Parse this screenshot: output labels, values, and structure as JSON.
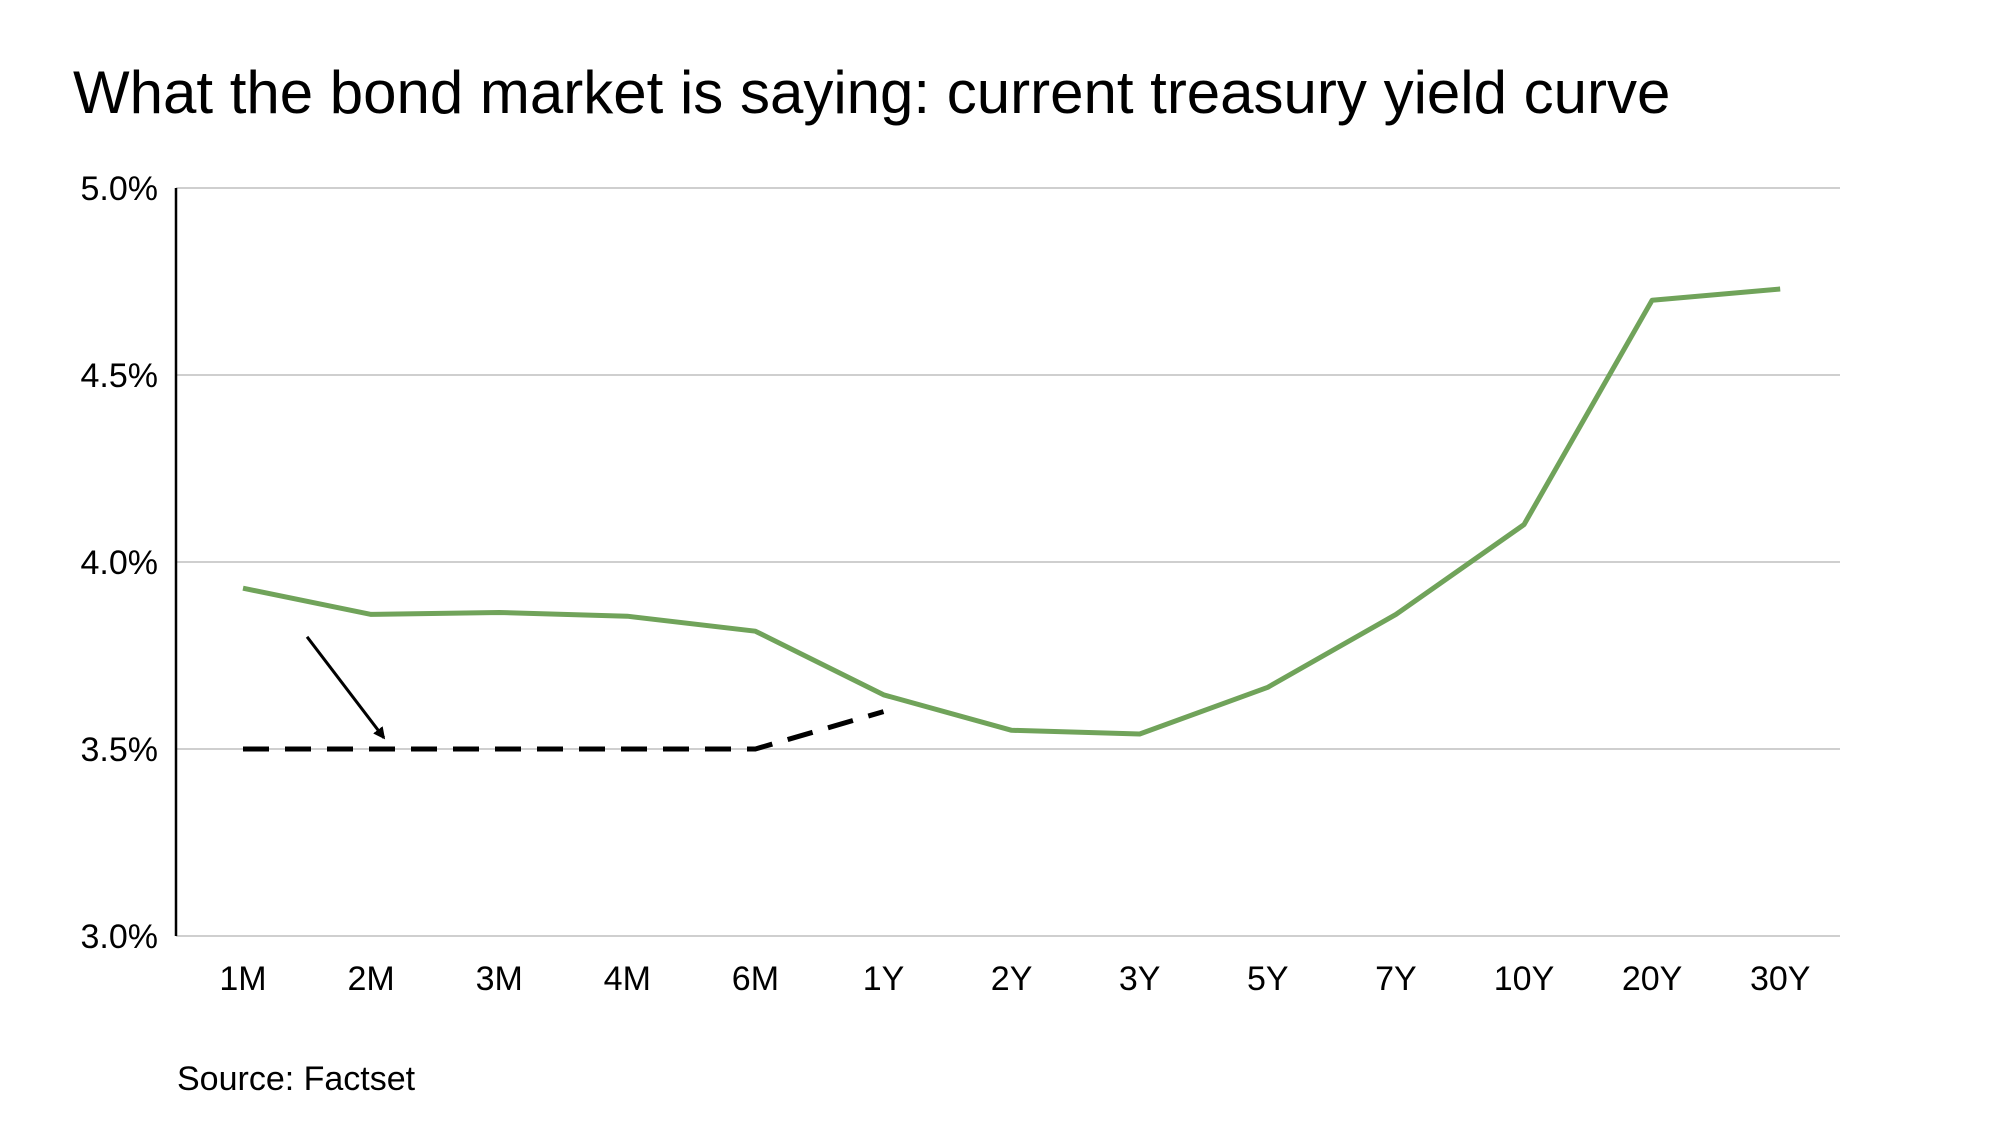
{
  "chart_data": {
    "type": "line",
    "title": "What the bond market is saying: current treasury yield curve",
    "source": "Source: Factset",
    "categories": [
      "1M",
      "2M",
      "3M",
      "4M",
      "6M",
      "1Y",
      "2Y",
      "3Y",
      "5Y",
      "7Y",
      "10Y",
      "20Y",
      "30Y"
    ],
    "series": [
      {
        "style": "solid",
        "color": "#70A35A",
        "values": [
          3.93,
          3.86,
          3.865,
          3.855,
          3.815,
          3.645,
          3.55,
          3.54,
          3.665,
          3.86,
          4.1,
          4.7,
          4.73
        ]
      },
      {
        "style": "dashed",
        "color": "#000000",
        "values": [
          3.5,
          3.5,
          3.5,
          3.5,
          3.5,
          3.6,
          null,
          null,
          null,
          null,
          null,
          null,
          null
        ]
      }
    ],
    "y_ticks": [
      3.0,
      3.5,
      4.0,
      4.5,
      5.0
    ],
    "y_tick_labels": [
      "3.0%",
      "3.5%",
      "4.0%",
      "4.5%",
      "5.0%"
    ],
    "ylim": [
      3.0,
      5.0
    ],
    "grid": "horizontal",
    "annotations": [
      {
        "type": "arrow",
        "from": {
          "x": 0.5,
          "y": 3.8
        },
        "to": {
          "x": 1.1,
          "y": 3.53
        },
        "color": "#000000"
      }
    ],
    "legend": "none"
  }
}
